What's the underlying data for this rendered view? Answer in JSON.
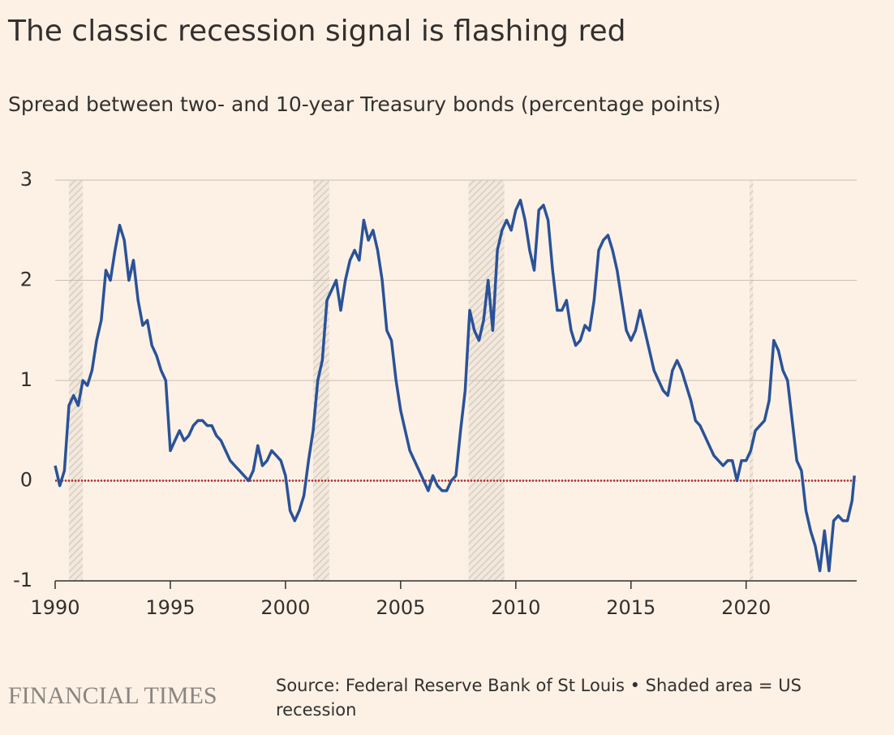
{
  "chart_data": {
    "type": "line",
    "title": "The classic recession signal is flashing red",
    "subtitle": "Spread between two- and 10-year Treasury bonds (percentage points)",
    "brand": "FINANCIAL TIMES",
    "source": "Source: Federal Reserve Bank of St Louis • Shaded area = US recession",
    "xlim": [
      1990,
      2024.8
    ],
    "xticks": [
      1990,
      1995,
      2000,
      2005,
      2010,
      2015,
      2020
    ],
    "ylim": [
      -1,
      3
    ],
    "yticks": [
      -1,
      0,
      1,
      2,
      3
    ],
    "grid": true,
    "reference_line": {
      "value": 0,
      "color": "#c0262d"
    },
    "recessions": [
      [
        1990.6,
        1991.2
      ],
      [
        2001.2,
        2001.9
      ],
      [
        2007.95,
        2009.5
      ],
      [
        2020.15,
        2020.3
      ]
    ],
    "x": [
      1990.0,
      1990.2,
      1990.4,
      1990.6,
      1990.8,
      1991.0,
      1991.2,
      1991.4,
      1991.6,
      1991.8,
      1992.0,
      1992.2,
      1992.4,
      1992.6,
      1992.8,
      1993.0,
      1993.2,
      1993.4,
      1993.6,
      1993.8,
      1994.0,
      1994.2,
      1994.4,
      1994.6,
      1994.8,
      1995.0,
      1995.2,
      1995.4,
      1995.6,
      1995.8,
      1996.0,
      1996.2,
      1996.4,
      1996.6,
      1996.8,
      1997.0,
      1997.2,
      1997.4,
      1997.6,
      1997.8,
      1998.0,
      1998.2,
      1998.4,
      1998.6,
      1998.8,
      1999.0,
      1999.2,
      1999.4,
      1999.6,
      1999.8,
      2000.0,
      2000.2,
      2000.4,
      2000.6,
      2000.8,
      2001.0,
      2001.2,
      2001.4,
      2001.6,
      2001.8,
      2002.0,
      2002.2,
      2002.4,
      2002.6,
      2002.8,
      2003.0,
      2003.2,
      2003.4,
      2003.6,
      2003.8,
      2004.0,
      2004.2,
      2004.4,
      2004.6,
      2004.8,
      2005.0,
      2005.2,
      2005.4,
      2005.6,
      2005.8,
      2006.0,
      2006.2,
      2006.4,
      2006.6,
      2006.8,
      2007.0,
      2007.2,
      2007.4,
      2007.6,
      2007.8,
      2008.0,
      2008.2,
      2008.4,
      2008.6,
      2008.8,
      2009.0,
      2009.2,
      2009.4,
      2009.6,
      2009.8,
      2010.0,
      2010.2,
      2010.4,
      2010.6,
      2010.8,
      2011.0,
      2011.2,
      2011.4,
      2011.6,
      2011.8,
      2012.0,
      2012.2,
      2012.4,
      2012.6,
      2012.8,
      2013.0,
      2013.2,
      2013.4,
      2013.6,
      2013.8,
      2014.0,
      2014.2,
      2014.4,
      2014.6,
      2014.8,
      2015.0,
      2015.2,
      2015.4,
      2015.6,
      2015.8,
      2016.0,
      2016.2,
      2016.4,
      2016.6,
      2016.8,
      2017.0,
      2017.2,
      2017.4,
      2017.6,
      2017.8,
      2018.0,
      2018.2,
      2018.4,
      2018.6,
      2018.8,
      2019.0,
      2019.2,
      2019.4,
      2019.6,
      2019.8,
      2020.0,
      2020.2,
      2020.4,
      2020.6,
      2020.8,
      2021.0,
      2021.2,
      2021.4,
      2021.6,
      2021.8,
      2022.0,
      2022.2,
      2022.4,
      2022.6,
      2022.8,
      2023.0,
      2023.2,
      2023.4,
      2023.6,
      2023.8,
      2024.0,
      2024.2,
      2024.4,
      2024.6,
      2024.7
    ],
    "series": [
      {
        "name": "Spread",
        "color": "#2a5298",
        "values": [
          0.15,
          -0.05,
          0.1,
          0.75,
          0.85,
          0.75,
          1.0,
          0.95,
          1.1,
          1.4,
          1.6,
          2.1,
          2.0,
          2.3,
          2.55,
          2.4,
          2.0,
          2.2,
          1.8,
          1.55,
          1.6,
          1.35,
          1.25,
          1.1,
          1.0,
          0.3,
          0.4,
          0.5,
          0.4,
          0.45,
          0.55,
          0.6,
          0.6,
          0.55,
          0.55,
          0.45,
          0.4,
          0.3,
          0.2,
          0.15,
          0.1,
          0.05,
          0.0,
          0.1,
          0.35,
          0.15,
          0.2,
          0.3,
          0.25,
          0.2,
          0.05,
          -0.3,
          -0.4,
          -0.3,
          -0.15,
          0.2,
          0.5,
          1.0,
          1.2,
          1.8,
          1.9,
          2.0,
          1.7,
          2.0,
          2.2,
          2.3,
          2.2,
          2.6,
          2.4,
          2.5,
          2.3,
          2.0,
          1.5,
          1.4,
          1.0,
          0.7,
          0.5,
          0.3,
          0.2,
          0.1,
          0.0,
          -0.1,
          0.05,
          -0.05,
          -0.1,
          -0.1,
          0.0,
          0.05,
          0.5,
          0.9,
          1.7,
          1.5,
          1.4,
          1.6,
          2.0,
          1.5,
          2.3,
          2.5,
          2.6,
          2.5,
          2.7,
          2.8,
          2.6,
          2.3,
          2.1,
          2.7,
          2.75,
          2.6,
          2.1,
          1.7,
          1.7,
          1.8,
          1.5,
          1.35,
          1.4,
          1.55,
          1.5,
          1.8,
          2.3,
          2.4,
          2.45,
          2.3,
          2.1,
          1.8,
          1.5,
          1.4,
          1.5,
          1.7,
          1.5,
          1.3,
          1.1,
          1.0,
          0.9,
          0.85,
          1.1,
          1.2,
          1.1,
          0.95,
          0.8,
          0.6,
          0.55,
          0.45,
          0.35,
          0.25,
          0.2,
          0.15,
          0.2,
          0.2,
          0.0,
          0.2,
          0.2,
          0.3,
          0.5,
          0.55,
          0.6,
          0.8,
          1.4,
          1.3,
          1.1,
          1.0,
          0.6,
          0.2,
          0.1,
          -0.3,
          -0.5,
          -0.65,
          -0.9,
          -0.5,
          -0.9,
          -0.4,
          -0.35,
          -0.4,
          -0.4,
          -0.2,
          0.05
        ]
      }
    ]
  }
}
